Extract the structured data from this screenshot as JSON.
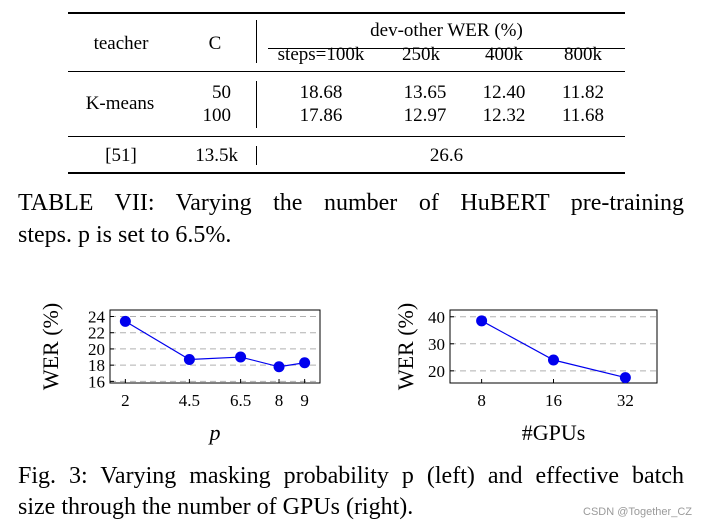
{
  "table": {
    "header": {
      "teacher": "teacher",
      "c": "C",
      "group": "dev-other WER (%)",
      "steps": [
        "steps=100k",
        "250k",
        "400k",
        "800k"
      ]
    },
    "rows": [
      {
        "teacher": "K-means",
        "c": "50",
        "values": [
          "18.68",
          "13.65",
          "12.40",
          "11.82"
        ]
      },
      {
        "teacher": "",
        "c": "100",
        "values": [
          "17.86",
          "12.97",
          "12.32",
          "11.68"
        ]
      },
      {
        "teacher": "[51]",
        "c": "13.5k",
        "values": [
          "26.6"
        ]
      }
    ],
    "caption_lines": [
      "TABLE VII: Varying the number of HuBERT pre-training",
      "steps. p is set to 6.5%."
    ]
  },
  "chart_data": [
    {
      "type": "line",
      "xlabel": "p",
      "ylabel": "WER (%)",
      "x": [
        2,
        4.5,
        6.5,
        8,
        9
      ],
      "x_tick_labels": [
        "2",
        "4.5",
        "6.5",
        "8",
        "9"
      ],
      "y": [
        23.4,
        18.7,
        19.0,
        17.8,
        18.3
      ],
      "y_ticks": [
        16,
        18,
        20,
        22,
        24
      ],
      "ylim": [
        15.8,
        24.8
      ],
      "xlim": [
        1.4,
        9.6
      ],
      "grid": "horizontal-dashed",
      "color": "#0000ee"
    },
    {
      "type": "line",
      "xlabel": "#GPUs",
      "ylabel": "WER (%)",
      "x": [
        8,
        16,
        32
      ],
      "x_tick_labels": [
        "8",
        "16",
        "32"
      ],
      "y": [
        38.5,
        24.0,
        17.5
      ],
      "y_ticks": [
        20,
        30,
        40
      ],
      "ylim": [
        15.5,
        42.5
      ],
      "grid": "horizontal-dashed",
      "color": "#0000ee"
    }
  ],
  "figure": {
    "caption_lines": [
      "Fig. 3: Varying masking probability p (left) and effective batch",
      "size through the number of GPUs (right)."
    ]
  },
  "watermark": "CSDN @Together_CZ"
}
